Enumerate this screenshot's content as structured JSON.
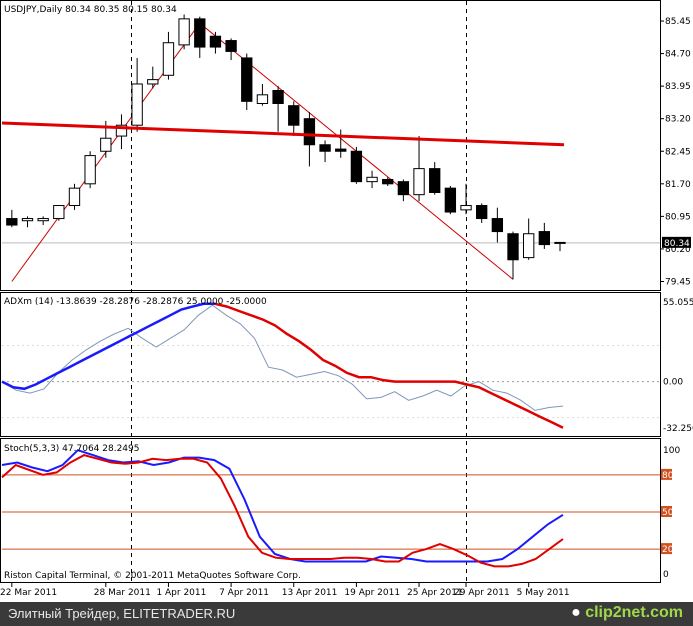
{
  "colors": {
    "frame": "#000000",
    "candle_up": "#ffffff",
    "candle_down": "#000000",
    "trendline": "#cc0000",
    "ma": "#e00000",
    "adx_plus": "#1a1aff",
    "adx_minus": "#e00000",
    "adx_main": "#7f97b8",
    "stoch_main": "#1a1aff",
    "stoch_signal": "#e00000",
    "level": "#d05020",
    "grid": "#000000"
  },
  "footer": {
    "caption": "Элитный Трейдер, ELITETRADER.RU",
    "logo_text": "clip2net.com"
  },
  "chart_data": [
    {
      "type": "candlestick",
      "title": "USDJPY,Daily  80.34 80.35 80.15 80.34",
      "ylim": [
        79.3,
        85.75
      ],
      "y_ticks": [
        "85.45",
        "84.70",
        "83.95",
        "83.20",
        "82.45",
        "81.70",
        "80.95",
        "80.20",
        "79.45"
      ],
      "current_price_label": "80.34",
      "current_price": 80.34,
      "x_dates": [
        "22 Mar 2011",
        "28 Mar 2011",
        "1 Apr 2011",
        "7 Apr 2011",
        "13 Apr 2011",
        "19 Apr 2011",
        "25 Apr 2011",
        "29 Apr 2011",
        "5 May 2011"
      ],
      "candles": [
        {
          "o": 80.9,
          "h": 81.1,
          "l": 80.7,
          "c": 80.75
        },
        {
          "o": 80.85,
          "h": 80.95,
          "l": 80.7,
          "c": 80.9
        },
        {
          "o": 80.85,
          "h": 80.95,
          "l": 80.75,
          "c": 80.9
        },
        {
          "o": 80.9,
          "h": 81.2,
          "l": 80.85,
          "c": 81.2
        },
        {
          "o": 81.2,
          "h": 81.7,
          "l": 81.1,
          "c": 81.6
        },
        {
          "o": 81.7,
          "h": 82.45,
          "l": 81.6,
          "c": 82.35
        },
        {
          "o": 82.45,
          "h": 83.15,
          "l": 82.3,
          "c": 82.75
        },
        {
          "o": 82.8,
          "h": 83.3,
          "l": 82.5,
          "c": 83.05
        },
        {
          "o": 83.05,
          "h": 84.6,
          "l": 82.9,
          "c": 84.0
        },
        {
          "o": 84.0,
          "h": 84.4,
          "l": 83.9,
          "c": 84.1
        },
        {
          "o": 84.2,
          "h": 85.2,
          "l": 84.1,
          "c": 84.95
        },
        {
          "o": 84.9,
          "h": 85.6,
          "l": 84.8,
          "c": 85.5
        },
        {
          "o": 85.5,
          "h": 85.55,
          "l": 84.6,
          "c": 84.85
        },
        {
          "o": 85.1,
          "h": 85.2,
          "l": 84.7,
          "c": 84.85
        },
        {
          "o": 85.0,
          "h": 85.05,
          "l": 84.55,
          "c": 84.75
        },
        {
          "o": 84.6,
          "h": 84.7,
          "l": 83.4,
          "c": 83.6
        },
        {
          "o": 83.55,
          "h": 84.0,
          "l": 83.5,
          "c": 83.75
        },
        {
          "o": 83.85,
          "h": 83.95,
          "l": 82.9,
          "c": 83.55
        },
        {
          "o": 83.5,
          "h": 83.6,
          "l": 82.8,
          "c": 83.05
        },
        {
          "o": 83.2,
          "h": 83.35,
          "l": 82.1,
          "c": 82.6
        },
        {
          "o": 82.6,
          "h": 82.7,
          "l": 82.2,
          "c": 82.45
        },
        {
          "o": 82.5,
          "h": 82.95,
          "l": 82.3,
          "c": 82.45
        },
        {
          "o": 82.45,
          "h": 82.55,
          "l": 81.7,
          "c": 81.75
        },
        {
          "o": 81.75,
          "h": 82.0,
          "l": 81.6,
          "c": 81.85
        },
        {
          "o": 81.8,
          "h": 81.85,
          "l": 81.65,
          "c": 81.7
        },
        {
          "o": 81.75,
          "h": 81.8,
          "l": 81.3,
          "c": 81.45
        },
        {
          "o": 81.45,
          "h": 82.8,
          "l": 81.3,
          "c": 82.05
        },
        {
          "o": 82.05,
          "h": 82.2,
          "l": 81.45,
          "c": 81.5
        },
        {
          "o": 81.6,
          "h": 81.65,
          "l": 81.0,
          "c": 81.05
        },
        {
          "o": 81.1,
          "h": 81.7,
          "l": 81.0,
          "c": 81.2
        },
        {
          "o": 81.2,
          "h": 81.25,
          "l": 80.8,
          "c": 80.9
        },
        {
          "o": 80.9,
          "h": 81.15,
          "l": 80.35,
          "c": 80.6
        },
        {
          "o": 80.55,
          "h": 80.6,
          "l": 79.5,
          "c": 79.95
        },
        {
          "o": 80.0,
          "h": 80.9,
          "l": 79.95,
          "c": 80.55
        },
        {
          "o": 80.6,
          "h": 80.8,
          "l": 80.2,
          "c": 80.3
        },
        {
          "o": 80.35,
          "h": 80.35,
          "l": 80.15,
          "c": 80.34
        }
      ],
      "moving_average": {
        "from": 83.1,
        "to": 82.6
      },
      "trendlines": [
        {
          "from_index": 0,
          "from_price": 79.45,
          "to_index": 12,
          "to_price": 85.4
        },
        {
          "from_index": 12,
          "from_price": 85.4,
          "to_index": 32,
          "to_price": 79.5
        }
      ]
    },
    {
      "type": "line",
      "title": "ADXm (14) -13.8639 -28.2876 -28.2876 25.0000 -25.0000",
      "ylim": [
        -35,
        58
      ],
      "y_ticks": [
        "55.0552",
        "0.00",
        "-32.256"
      ],
      "series": [
        {
          "values": [
            0,
            -4,
            -5,
            -2,
            2,
            6,
            10,
            14,
            18,
            22,
            26,
            30,
            34,
            38,
            42,
            46,
            50,
            52,
            54,
            54
          ]
        },
        {
          "values": [
            54,
            52,
            49,
            46,
            43,
            39,
            33,
            28,
            22,
            15,
            11,
            6,
            3,
            3,
            1,
            0,
            0,
            0,
            0,
            0,
            0,
            -2,
            -4,
            -8,
            -12,
            -16,
            -20,
            -24,
            -28,
            -32
          ]
        },
        {
          "values": [
            0,
            -6,
            -8,
            -5,
            6,
            15,
            22,
            28,
            33,
            37,
            30,
            24,
            30,
            36,
            46,
            53,
            46,
            40,
            30,
            10,
            8,
            3,
            5,
            7,
            4,
            -2,
            -12,
            -11,
            -7,
            -13,
            -10,
            -6,
            -10,
            -3,
            0,
            -6,
            -8,
            -13,
            -20,
            -18,
            -17
          ]
        }
      ]
    },
    {
      "type": "line",
      "title": "Stoch(5,3,3) 47.7064 28.2495",
      "ylim": [
        -5,
        105
      ],
      "y_ticks": [
        "100",
        "80",
        "50",
        "20",
        "0"
      ],
      "levels": [
        80,
        50,
        20
      ],
      "level_labels": [
        "80",
        "50",
        "20"
      ],
      "series": [
        {
          "values": [
            88,
            90,
            86,
            83,
            88,
            100,
            96,
            92,
            90,
            91,
            88,
            90,
            94,
            94,
            92,
            85,
            60,
            30,
            16,
            12,
            10,
            10,
            10,
            10,
            10,
            14,
            13,
            12,
            10,
            10,
            10,
            10,
            10,
            12,
            20,
            30,
            40,
            47.7
          ]
        },
        {
          "values": [
            78,
            88,
            84,
            80,
            82,
            90,
            96,
            93,
            90,
            89,
            90,
            93,
            92,
            93,
            93,
            90,
            77,
            55,
            30,
            17,
            13,
            12,
            12,
            12,
            12,
            13,
            13,
            12,
            10,
            10,
            17,
            20,
            24,
            20,
            15,
            9,
            6,
            6,
            8,
            12,
            20,
            28.2
          ]
        }
      ]
    }
  ],
  "footer_note": "Riston Capital Terminal, © 2001-2011 MetaQuotes Software Corp."
}
